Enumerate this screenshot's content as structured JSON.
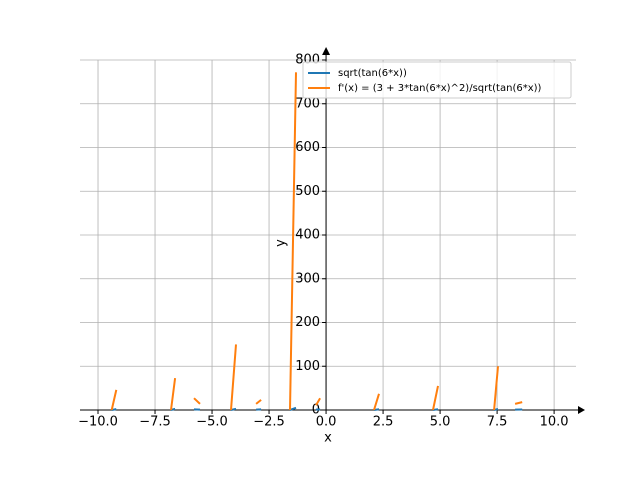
{
  "chart_data": {
    "type": "line",
    "x_label": "x",
    "y_label": "y",
    "x": [
      -9.4,
      -9.2,
      null,
      -6.8,
      -6.62,
      null,
      -5.79,
      -5.53,
      null,
      -4.17,
      -3.95,
      null,
      -3.07,
      -2.85,
      null,
      -1.58,
      -1.32,
      null,
      -0.44,
      -0.26,
      null,
      2.1,
      2.32,
      null,
      4.69,
      4.91,
      null,
      7.37,
      7.54,
      null,
      8.29,
      8.6
    ],
    "series": [
      {
        "name": "sqrt(tan(6*x))",
        "color": "#1f77b4",
        "values": [
          0,
          2,
          null,
          0,
          2.5,
          null,
          1.3,
          1,
          null,
          0,
          2.8,
          null,
          1,
          1.3,
          null,
          0,
          5,
          null,
          0.8,
          1.3,
          null,
          0,
          1.7,
          null,
          0,
          1.9,
          null,
          0,
          2.2,
          null,
          1,
          1.2
        ]
      },
      {
        "name": "f'(x) = (3 + 3*tan(6*x)^2)/sqrt(tan(6*x))",
        "color": "#ff7f0e",
        "values": [
          0,
          46,
          null,
          0,
          73,
          null,
          27,
          14,
          null,
          0,
          150,
          null,
          14,
          23,
          null,
          0,
          772,
          null,
          11,
          27,
          null,
          0,
          37,
          null,
          0,
          55,
          null,
          0,
          100,
          null,
          14,
          18
        ]
      }
    ],
    "xlim": [
      -10.79,
      10.96
    ],
    "ylim": [
      0,
      800
    ],
    "xticks": [
      {
        "value": -10,
        "label": "−10.0"
      },
      {
        "value": -7.5,
        "label": "−7.5"
      },
      {
        "value": -5,
        "label": "−5.0"
      },
      {
        "value": -2.5,
        "label": "−2.5"
      },
      {
        "value": 0,
        "label": "0.0"
      },
      {
        "value": 2.5,
        "label": "2.5"
      },
      {
        "value": 5,
        "label": "5.0"
      },
      {
        "value": 7.5,
        "label": "7.5"
      },
      {
        "value": 10,
        "label": "10.0"
      }
    ],
    "yticks": [
      0,
      100,
      200,
      300,
      400,
      500,
      600,
      700,
      800
    ],
    "grid": true,
    "legend": "upper right"
  }
}
